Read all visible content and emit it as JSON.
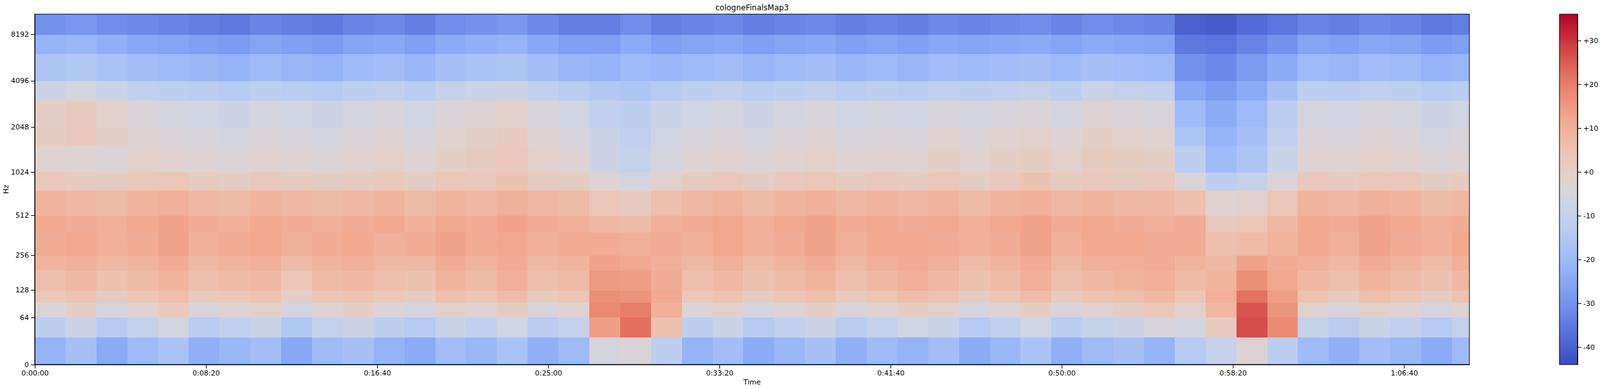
{
  "chart_data": {
    "type": "heatmap",
    "title": "cologneFinalsMap3",
    "x_label": "Time",
    "y_label": "Hz",
    "log": "y",
    "xlim": [
      0,
      4191
    ],
    "ylim": [
      0,
      11025
    ],
    "xticks": [
      {
        "value": 0,
        "label": "0:00:00"
      },
      {
        "value": 500,
        "label": "0:08:20"
      },
      {
        "value": 1000,
        "label": "0:16:40"
      },
      {
        "value": 1500,
        "label": "0:25:00"
      },
      {
        "value": 2000,
        "label": "0:33:20"
      },
      {
        "value": 2500,
        "label": "0:41:40"
      },
      {
        "value": 3000,
        "label": "0:50:00"
      },
      {
        "value": 3500,
        "label": "0:58:20"
      },
      {
        "value": 4000,
        "label": "1:06:40"
      }
    ],
    "yticks": [
      0,
      64,
      128,
      256,
      512,
      1024,
      2048,
      4096,
      8192
    ],
    "x_bins": [
      0,
      90,
      180,
      270,
      360,
      450,
      540,
      630,
      720,
      810,
      900,
      990,
      1080,
      1170,
      1260,
      1350,
      1440,
      1530,
      1620,
      1710,
      1800,
      1890,
      1980,
      2070,
      2160,
      2250,
      2340,
      2430,
      2520,
      2610,
      2700,
      2790,
      2880,
      2970,
      3060,
      3150,
      3240,
      3330,
      3420,
      3510,
      3600,
      3690,
      3780,
      3870,
      3960,
      4050,
      4140,
      4191
    ],
    "y_bins": [
      0,
      32,
      64,
      96,
      128,
      192,
      256,
      384,
      512,
      768,
      1024,
      1536,
      2048,
      3072,
      4096,
      6144,
      8192,
      11025
    ],
    "values": [
      [
        -22,
        -18,
        -24,
        -20,
        -17,
        -23,
        -21,
        -19,
        -25,
        -20,
        -18,
        -22,
        -24,
        -19,
        -21,
        -17,
        -23,
        -20,
        -6,
        -4,
        -12,
        -22,
        -19,
        -24,
        -21,
        -18,
        -23,
        -20,
        -22,
        -19,
        -24,
        -21,
        -17,
        -23,
        -20,
        -18,
        -22,
        -14,
        -10,
        -3,
        -12,
        -20,
        -23,
        -19,
        -21,
        -24,
        -20
      ],
      [
        -12,
        -8,
        -14,
        -10,
        -6,
        -13,
        -11,
        -9,
        -15,
        -10,
        -8,
        -12,
        -14,
        -9,
        -11,
        -7,
        -13,
        -10,
        14,
        22,
        6,
        -12,
        -9,
        -14,
        -11,
        -8,
        -13,
        -10,
        -7,
        -9,
        -14,
        -11,
        -7,
        -13,
        -10,
        -8,
        -5,
        -6,
        2,
        27,
        18,
        -10,
        -13,
        -9,
        -11,
        -14,
        -10
      ],
      [
        -4,
        0,
        -6,
        -2,
        2,
        -5,
        -3,
        -1,
        -7,
        -2,
        0,
        -4,
        -6,
        -1,
        -3,
        1,
        -5,
        -2,
        18,
        20,
        10,
        -4,
        -1,
        -6,
        -3,
        0,
        -5,
        -2,
        1,
        -1,
        -6,
        -3,
        1,
        -5,
        -2,
        0,
        3,
        -1,
        8,
        26,
        16,
        -2,
        -5,
        -1,
        -3,
        -6,
        -2
      ],
      [
        3,
        5,
        1,
        4,
        6,
        2,
        3,
        5,
        0,
        4,
        5,
        3,
        1,
        6,
        4,
        7,
        2,
        4,
        17,
        16,
        12,
        3,
        5,
        1,
        4,
        6,
        2,
        4,
        7,
        5,
        1,
        4,
        7,
        2,
        5,
        6,
        8,
        4,
        10,
        22,
        14,
        5,
        2,
        6,
        4,
        1,
        5
      ],
      [
        6,
        8,
        5,
        7,
        9,
        6,
        7,
        8,
        4,
        7,
        8,
        6,
        5,
        9,
        7,
        10,
        6,
        7,
        15,
        14,
        11,
        6,
        8,
        5,
        7,
        9,
        6,
        8,
        10,
        8,
        5,
        7,
        10,
        6,
        8,
        9,
        10,
        7,
        9,
        17,
        12,
        8,
        6,
        9,
        7,
        5,
        8
      ],
      [
        9,
        10,
        8,
        9,
        11,
        8,
        9,
        10,
        7,
        9,
        10,
        8,
        8,
        11,
        9,
        11,
        8,
        9,
        13,
        12,
        10,
        8,
        10,
        7,
        9,
        11,
        8,
        10,
        11,
        10,
        7,
        9,
        11,
        8,
        10,
        10,
        11,
        9,
        8,
        13,
        11,
        10,
        8,
        11,
        9,
        7,
        10
      ],
      [
        11,
        12,
        10,
        11,
        13,
        10,
        11,
        12,
        10,
        11,
        12,
        10,
        11,
        13,
        11,
        12,
        10,
        11,
        11,
        10,
        11,
        10,
        12,
        10,
        11,
        13,
        10,
        12,
        12,
        11,
        10,
        11,
        13,
        10,
        12,
        12,
        11,
        11,
        6,
        7,
        9,
        12,
        10,
        13,
        11,
        10,
        12
      ],
      [
        12,
        11,
        10,
        12,
        13,
        11,
        10,
        12,
        11,
        10,
        11,
        12,
        10,
        12,
        11,
        13,
        11,
        10,
        8,
        7,
        10,
        11,
        12,
        10,
        12,
        13,
        11,
        12,
        11,
        12,
        10,
        12,
        13,
        11,
        12,
        11,
        10,
        11,
        3,
        4,
        8,
        12,
        11,
        13,
        12,
        10,
        11
      ],
      [
        9,
        8,
        7,
        9,
        10,
        8,
        7,
        9,
        8,
        7,
        8,
        9,
        7,
        9,
        8,
        10,
        8,
        7,
        4,
        2,
        6,
        8,
        9,
        7,
        9,
        10,
        8,
        9,
        8,
        9,
        7,
        9,
        10,
        8,
        9,
        8,
        8,
        6,
        -2,
        -1,
        4,
        9,
        8,
        10,
        9,
        7,
        8
      ],
      [
        3,
        2,
        1,
        3,
        4,
        2,
        1,
        3,
        2,
        1,
        2,
        3,
        1,
        4,
        3,
        5,
        2,
        1,
        -3,
        -6,
        -1,
        2,
        3,
        1,
        3,
        4,
        2,
        3,
        2,
        4,
        1,
        3,
        5,
        2,
        3,
        2,
        3,
        -4,
        -12,
        -10,
        -4,
        3,
        2,
        4,
        3,
        1,
        2
      ],
      [
        -2,
        -3,
        -4,
        -1,
        -2,
        -3,
        -4,
        -2,
        -3,
        -4,
        -2,
        -1,
        -3,
        0,
        2,
        3,
        -1,
        -3,
        -8,
        -10,
        -6,
        -3,
        -2,
        -4,
        -2,
        -1,
        -3,
        -2,
        -3,
        0,
        -2,
        0,
        1,
        -1,
        2,
        1,
        0,
        -12,
        -20,
        -16,
        -9,
        -2,
        -3,
        -1,
        -2,
        -4,
        -3
      ],
      [
        1,
        3,
        0,
        -3,
        -4,
        -5,
        -6,
        -4,
        -5,
        -6,
        -4,
        -3,
        -5,
        -2,
        0,
        2,
        -3,
        -5,
        -9,
        -11,
        -7,
        -5,
        -4,
        -6,
        -4,
        -3,
        -5,
        -4,
        -5,
        -2,
        -4,
        -2,
        -1,
        -3,
        0,
        -1,
        -2,
        -16,
        -22,
        -18,
        -11,
        -4,
        -5,
        -3,
        -4,
        -6,
        -5
      ],
      [
        0,
        2,
        -1,
        -4,
        -6,
        -7,
        -8,
        -6,
        -7,
        -8,
        -6,
        -5,
        -7,
        -4,
        -3,
        -1,
        -5,
        -7,
        -11,
        -12,
        -9,
        -7,
        -6,
        -8,
        -6,
        -5,
        -7,
        -6,
        -7,
        -5,
        -6,
        -5,
        -4,
        -6,
        -3,
        -4,
        -5,
        -20,
        -24,
        -20,
        -13,
        -6,
        -7,
        -5,
        -6,
        -8,
        -7
      ],
      [
        -8,
        -6,
        -9,
        -11,
        -12,
        -13,
        -14,
        -12,
        -13,
        -14,
        -12,
        -11,
        -13,
        -10,
        -9,
        -8,
        -11,
        -13,
        -15,
        -16,
        -14,
        -12,
        -11,
        -13,
        -12,
        -11,
        -13,
        -12,
        -13,
        -11,
        -12,
        -11,
        -10,
        -12,
        -9,
        -10,
        -11,
        -25,
        -28,
        -24,
        -18,
        -12,
        -13,
        -11,
        -12,
        -14,
        -13
      ],
      [
        -16,
        -15,
        -17,
        -19,
        -20,
        -21,
        -22,
        -20,
        -21,
        -22,
        -20,
        -19,
        -21,
        -18,
        -17,
        -16,
        -19,
        -21,
        -22,
        -20,
        -21,
        -20,
        -19,
        -21,
        -20,
        -19,
        -21,
        -20,
        -21,
        -19,
        -20,
        -19,
        -18,
        -20,
        -18,
        -19,
        -20,
        -30,
        -32,
        -28,
        -24,
        -20,
        -21,
        -19,
        -20,
        -22,
        -21
      ],
      [
        -22,
        -21,
        -23,
        -25,
        -26,
        -27,
        -28,
        -26,
        -27,
        -28,
        -26,
        -25,
        -27,
        -24,
        -23,
        -22,
        -25,
        -27,
        -27,
        -24,
        -27,
        -26,
        -25,
        -27,
        -26,
        -25,
        -27,
        -26,
        -27,
        -25,
        -26,
        -25,
        -24,
        -26,
        -24,
        -25,
        -26,
        -35,
        -36,
        -33,
        -30,
        -26,
        -27,
        -25,
        -26,
        -28,
        -27
      ],
      [
        -30,
        -29,
        -31,
        -32,
        -33,
        -34,
        -35,
        -33,
        -34,
        -35,
        -33,
        -32,
        -34,
        -31,
        -30,
        -29,
        -32,
        -34,
        -34,
        -31,
        -34,
        -33,
        -32,
        -34,
        -33,
        -32,
        -34,
        -33,
        -34,
        -32,
        -33,
        -32,
        -31,
        -33,
        -31,
        -32,
        -33,
        -40,
        -41,
        -38,
        -36,
        -33,
        -34,
        -32,
        -33,
        -35,
        -34
      ]
    ],
    "colorbar_range": [
      -44,
      36
    ],
    "colorbar_ticks": [
      {
        "value": 30,
        "label": "+30"
      },
      {
        "value": 20,
        "label": "+20"
      },
      {
        "value": 10,
        "label": "+10"
      },
      {
        "value": 0,
        "label": "+0"
      },
      -10,
      -20,
      -30,
      -40
    ]
  }
}
